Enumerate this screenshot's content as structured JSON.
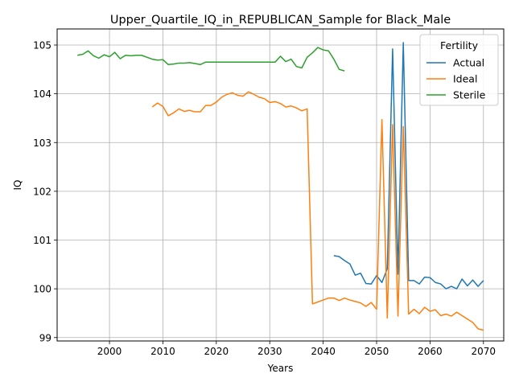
{
  "chart_data": {
    "type": "line",
    "title": "Upper_Quartile_IQ_in_REPUBLICAN_Sample for Black_Male",
    "xlabel": "Years",
    "ylabel": "IQ",
    "xlim": [
      1990.2,
      2073.8
    ],
    "ylim": [
      98.93,
      105.33
    ],
    "xticks": [
      2000,
      2010,
      2020,
      2030,
      2040,
      2050,
      2060,
      2070
    ],
    "yticks": [
      99,
      100,
      101,
      102,
      103,
      104,
      105
    ],
    "grid": true,
    "legend": {
      "title": "Fertility",
      "placement": "top-right"
    },
    "series": [
      {
        "name": "Actual",
        "color": "#1f77b4",
        "x": [
          2042,
          2043,
          2044,
          2045,
          2046,
          2047,
          2048,
          2049,
          2050,
          2051,
          2052,
          2053,
          2054,
          2055,
          2056,
          2057,
          2058,
          2059,
          2060,
          2061,
          2062,
          2063,
          2064,
          2065,
          2066,
          2067,
          2068,
          2069,
          2070
        ],
        "y": [
          100.68,
          100.66,
          100.58,
          100.51,
          100.28,
          100.32,
          100.11,
          100.1,
          100.27,
          100.13,
          100.41,
          104.92,
          100.3,
          105.05,
          100.17,
          100.17,
          100.1,
          100.24,
          100.23,
          100.13,
          100.1,
          100.0,
          100.05,
          100.0,
          100.2,
          100.06,
          100.18,
          100.05,
          100.17
        ]
      },
      {
        "name": "Ideal",
        "color": "#ff7f0e",
        "x": [
          2008,
          2009,
          2010,
          2011,
          2012,
          2013,
          2014,
          2015,
          2016,
          2017,
          2018,
          2019,
          2020,
          2021,
          2022,
          2023,
          2024,
          2025,
          2026,
          2027,
          2028,
          2029,
          2030,
          2031,
          2032,
          2033,
          2034,
          2035,
          2036,
          2037,
          2038,
          2039,
          2040,
          2041,
          2042,
          2043,
          2044,
          2045,
          2046,
          2047,
          2048,
          2049,
          2050,
          2051,
          2052,
          2053,
          2054,
          2055,
          2056,
          2057,
          2058,
          2059,
          2060,
          2061,
          2062,
          2063,
          2064,
          2065,
          2066,
          2067,
          2068,
          2069,
          2070
        ],
        "y": [
          103.73,
          103.81,
          103.74,
          103.55,
          103.61,
          103.69,
          103.64,
          103.66,
          103.63,
          103.63,
          103.76,
          103.76,
          103.83,
          103.93,
          103.99,
          104.02,
          103.97,
          103.95,
          104.04,
          103.99,
          103.93,
          103.9,
          103.82,
          103.84,
          103.8,
          103.73,
          103.75,
          103.71,
          103.65,
          103.69,
          99.69,
          99.73,
          99.77,
          99.81,
          99.81,
          99.76,
          99.81,
          99.77,
          99.74,
          99.71,
          99.64,
          99.72,
          99.58,
          103.47,
          99.4,
          103.37,
          99.44,
          103.33,
          99.48,
          99.58,
          99.49,
          99.62,
          99.54,
          99.57,
          99.45,
          99.48,
          99.44,
          99.52,
          99.45,
          99.38,
          99.31,
          99.18,
          99.15
        ]
      },
      {
        "name": "Sterile",
        "color": "#2ca02c",
        "x": [
          1994,
          1995,
          1996,
          1997,
          1998,
          1999,
          2000,
          2001,
          2002,
          2003,
          2004,
          2005,
          2006,
          2007,
          2008,
          2009,
          2010,
          2011,
          2012,
          2013,
          2014,
          2015,
          2016,
          2017,
          2018,
          2019,
          2020,
          2021,
          2022,
          2023,
          2024,
          2025,
          2026,
          2027,
          2028,
          2029,
          2030,
          2031,
          2032,
          2033,
          2034,
          2035,
          2036,
          2037,
          2038,
          2039,
          2040,
          2041,
          2042,
          2043,
          2044
        ],
        "y": [
          104.79,
          104.81,
          104.88,
          104.78,
          104.73,
          104.8,
          104.76,
          104.85,
          104.72,
          104.79,
          104.78,
          104.79,
          104.79,
          104.75,
          104.71,
          104.69,
          104.7,
          104.6,
          104.61,
          104.63,
          104.63,
          104.64,
          104.62,
          104.6,
          104.65,
          104.65,
          104.65,
          104.65,
          104.65,
          104.65,
          104.65,
          104.65,
          104.65,
          104.65,
          104.65,
          104.65,
          104.65,
          104.65,
          104.77,
          104.66,
          104.71,
          104.56,
          104.53,
          104.75,
          104.84,
          104.95,
          104.9,
          104.88,
          104.71,
          104.5,
          104.47
        ]
      }
    ]
  }
}
